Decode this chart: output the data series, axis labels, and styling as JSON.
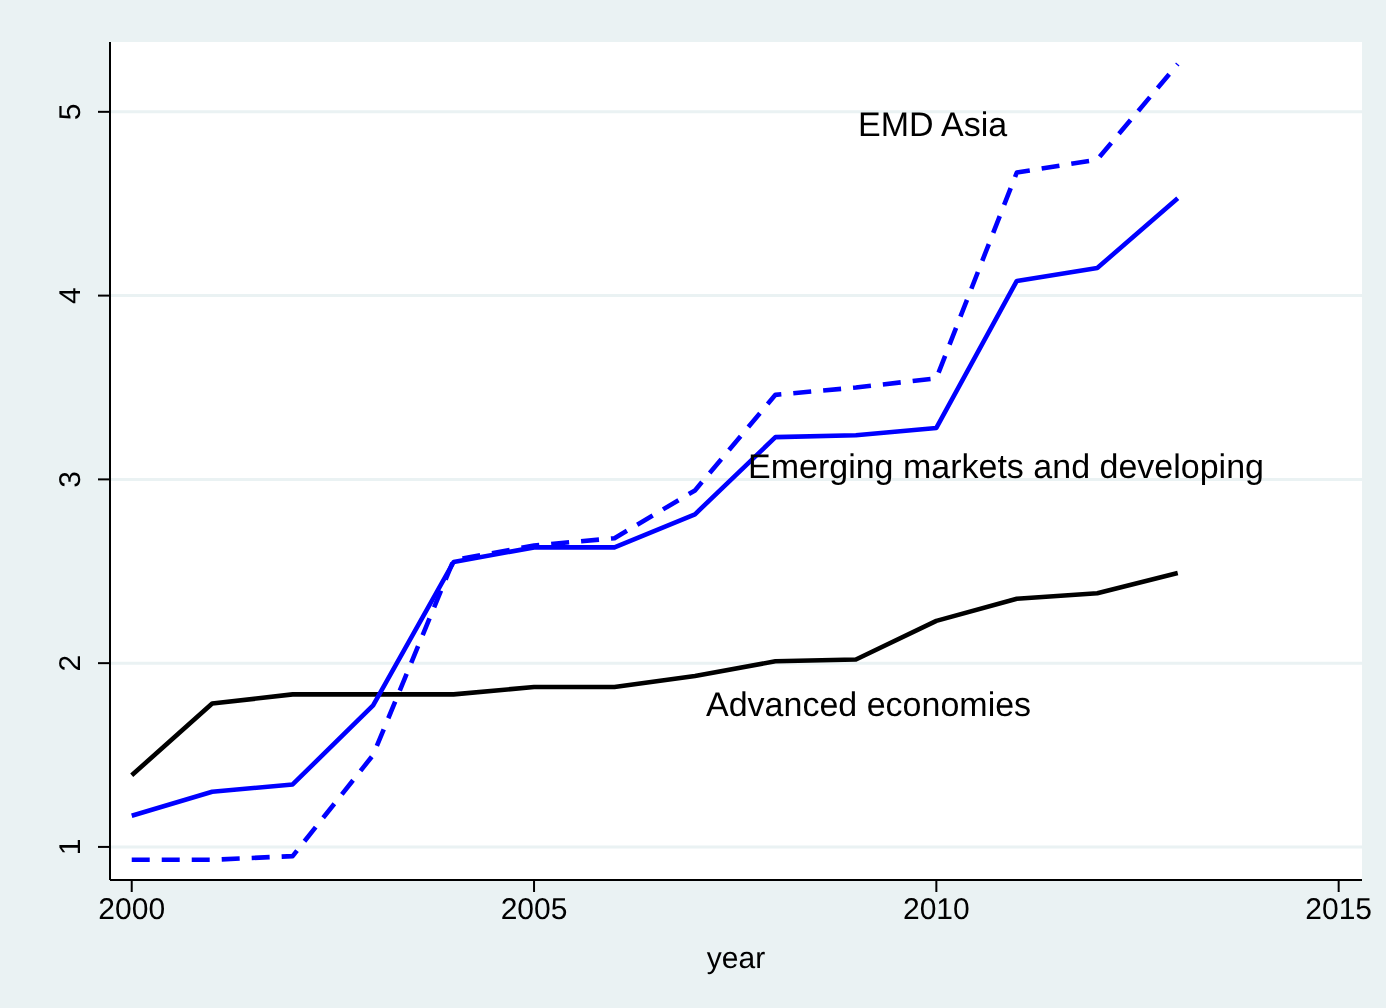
{
  "chart_data": {
    "type": "line",
    "xlabel": "year",
    "x": [
      2000,
      2001,
      2002,
      2003,
      2004,
      2005,
      2006,
      2007,
      2008,
      2009,
      2010,
      2011,
      2012,
      2013
    ],
    "series": [
      {
        "color": "#000000",
        "line_style": "solid",
        "values": [
          1.39,
          1.78,
          1.83,
          1.83,
          1.83,
          1.87,
          1.87,
          1.93,
          2.01,
          2.02,
          2.23,
          2.35,
          2.38,
          2.49
        ]
      },
      {
        "color": "#0000ff",
        "line_style": "solid",
        "values": [
          1.17,
          1.3,
          1.34,
          1.77,
          2.55,
          2.63,
          2.63,
          2.81,
          3.23,
          3.24,
          3.28,
          4.08,
          4.15,
          4.53
        ]
      },
      {
        "color": "#0000ff",
        "line_style": "dashed",
        "values": [
          0.93,
          0.93,
          0.95,
          1.5,
          2.56,
          2.64,
          2.68,
          2.94,
          3.46,
          3.5,
          3.55,
          4.67,
          4.74,
          5.26
        ]
      }
    ],
    "xlim": [
      1999.73,
      2015.29
    ],
    "xticks": [
      2000,
      2005,
      2010,
      2015
    ],
    "ylim": [
      0.82,
      5.38
    ],
    "yticks": [
      1,
      2,
      3,
      4,
      5
    ],
    "grid": "y",
    "marker": "none",
    "annotations": [
      "EMD Asia",
      "Emerging markets and developing",
      "Advanced economies"
    ]
  }
}
